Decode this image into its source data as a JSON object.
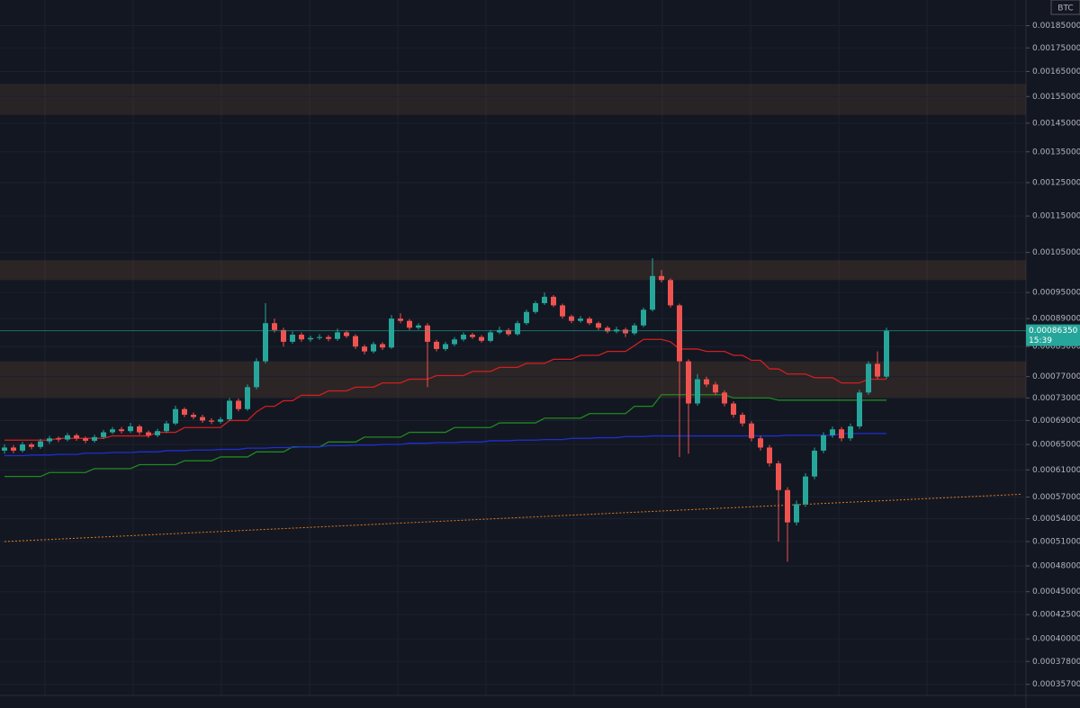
{
  "chart_data": {
    "type": "candlestick",
    "currency": "BTC",
    "log_scale": true,
    "grid": true,
    "up_color": "#26a69a",
    "down_color": "#ef5350",
    "ylim": [
      0.000352,
      0.00192
    ],
    "yticks": [
      {
        "value": 0.00185,
        "label": "0.00185000"
      },
      {
        "value": 0.00175,
        "label": "0.00175000"
      },
      {
        "value": 0.00165,
        "label": "0.00165000"
      },
      {
        "value": 0.00155,
        "label": "0.00155000"
      },
      {
        "value": 0.00145,
        "label": "0.00145000"
      },
      {
        "value": 0.00135,
        "label": "0.00135000"
      },
      {
        "value": 0.00125,
        "label": "0.00125000"
      },
      {
        "value": 0.00115,
        "label": "0.00115000"
      },
      {
        "value": 0.00105,
        "label": "0.00105000"
      },
      {
        "value": 0.00095,
        "label": "0.00095000"
      },
      {
        "value": 0.00089,
        "label": "0.00089000"
      },
      {
        "value": 0.00083,
        "label": "0.00083000"
      },
      {
        "value": 0.00077,
        "label": "0.00077000"
      },
      {
        "value": 0.00073,
        "label": "0.00073000"
      },
      {
        "value": 0.00069,
        "label": "0.00069000"
      },
      {
        "value": 0.00065,
        "label": "0.00065000"
      },
      {
        "value": 0.00061,
        "label": "0.00061000"
      },
      {
        "value": 0.00057,
        "label": "0.00057000"
      },
      {
        "value": 0.00054,
        "label": "0.00054000"
      },
      {
        "value": 0.00051,
        "label": "0.00051000"
      },
      {
        "value": 0.00048,
        "label": "0.00048000"
      },
      {
        "value": 0.00045,
        "label": "0.00045000"
      },
      {
        "value": 0.000425,
        "label": "0.00042500"
      },
      {
        "value": 0.0004,
        "label": "0.00040000"
      },
      {
        "value": 0.000378,
        "label": "0.00037800"
      },
      {
        "value": 0.000357,
        "label": "0.00035700"
      }
    ],
    "last_price": {
      "value": 0.0008635,
      "label": "0.00086350"
    },
    "countdown": "15:39",
    "zones": [
      {
        "range": [
          0.00148,
          0.0016
        ],
        "color": "rgba(120,80,50,0.22)"
      },
      {
        "range": [
          0.00098,
          0.00103
        ],
        "color": "rgba(120,80,50,0.25)"
      },
      {
        "range": [
          0.00073,
          0.0008
        ],
        "color": "rgba(120,80,50,0.25)"
      }
    ],
    "candles": [
      [
        0.00064,
        0.00065,
        0.000635,
        0.000645
      ],
      [
        0.000645,
        0.000649,
        0.000636,
        0.00064
      ],
      [
        0.00064,
        0.000654,
        0.000637,
        0.00065
      ],
      [
        0.00065,
        0.000653,
        0.000642,
        0.000646
      ],
      [
        0.000646,
        0.000659,
        0.000643,
        0.000655
      ],
      [
        0.000655,
        0.000664,
        0.000651,
        0.00066
      ],
      [
        0.00066,
        0.000663,
        0.000654,
        0.000658
      ],
      [
        0.000658,
        0.000669,
        0.000655,
        0.000665
      ],
      [
        0.000665,
        0.000668,
        0.000656,
        0.00066
      ],
      [
        0.00066,
        0.000663,
        0.000652,
        0.000656
      ],
      [
        0.000656,
        0.000666,
        0.000653,
        0.000662
      ],
      [
        0.000662,
        0.000674,
        0.000659,
        0.00067
      ],
      [
        0.00067,
        0.000679,
        0.000667,
        0.000675
      ],
      [
        0.000675,
        0.000679,
        0.000668,
        0.000672
      ],
      [
        0.000672,
        0.000686,
        0.000669,
        0.00068
      ],
      [
        0.00068,
        0.000683,
        0.000666,
        0.00067
      ],
      [
        0.00067,
        0.000673,
        0.000661,
        0.000665
      ],
      [
        0.000665,
        0.000676,
        0.000662,
        0.000672
      ],
      [
        0.000672,
        0.000689,
        0.000669,
        0.000685
      ],
      [
        0.000685,
        0.000716,
        0.000682,
        0.00071
      ],
      [
        0.00071,
        0.000713,
        0.000696,
        0.0007
      ],
      [
        0.0007,
        0.000704,
        0.000692,
        0.000696
      ],
      [
        0.000696,
        0.0007,
        0.000686,
        0.00069
      ],
      [
        0.00069,
        0.000694,
        0.000684,
        0.000688
      ],
      [
        0.000688,
        0.000696,
        0.000685,
        0.000692
      ],
      [
        0.000692,
        0.00073,
        0.000689,
        0.000725
      ],
      [
        0.000725,
        0.000729,
        0.000706,
        0.00071
      ],
      [
        0.00071,
        0.000755,
        0.000707,
        0.00075
      ],
      [
        0.00075,
        0.000806,
        0.000746,
        0.0008
      ],
      [
        0.0008,
        0.000925,
        0.000796,
        0.00088
      ],
      [
        0.00088,
        0.00089,
        0.00086,
        0.000865
      ],
      [
        0.000865,
        0.00087,
        0.00083,
        0.00084
      ],
      [
        0.00084,
        0.000862,
        0.000836,
        0.000855
      ],
      [
        0.000855,
        0.00086,
        0.00084,
        0.000845
      ],
      [
        0.000845,
        0.000853,
        0.00084,
        0.000848
      ],
      [
        0.000848,
        0.000856,
        0.000844,
        0.00085
      ],
      [
        0.00085,
        0.000854,
        0.000841,
        0.000846
      ],
      [
        0.000846,
        0.000868,
        0.000842,
        0.00086
      ],
      [
        0.00086,
        0.000864,
        0.000848,
        0.000852
      ],
      [
        0.000852,
        0.000856,
        0.000825,
        0.00083
      ],
      [
        0.00083,
        0.000834,
        0.000814,
        0.00082
      ],
      [
        0.00082,
        0.00084,
        0.000816,
        0.000835
      ],
      [
        0.000835,
        0.000839,
        0.000823,
        0.000828
      ],
      [
        0.000828,
        0.000898,
        0.000825,
        0.00089
      ],
      [
        0.00089,
        0.000902,
        0.00088,
        0.000885
      ],
      [
        0.000885,
        0.000889,
        0.000865,
        0.00087
      ],
      [
        0.00087,
        0.00088,
        0.000866,
        0.000875
      ],
      [
        0.000875,
        0.00088,
        0.00075,
        0.00084
      ],
      [
        0.00084,
        0.000844,
        0.00082,
        0.000825
      ],
      [
        0.000825,
        0.00084,
        0.000821,
        0.000835
      ],
      [
        0.000835,
        0.00085,
        0.000831,
        0.000845
      ],
      [
        0.000845,
        0.00086,
        0.000841,
        0.000855
      ],
      [
        0.000855,
        0.000859,
        0.000846,
        0.00085
      ],
      [
        0.00085,
        0.000854,
        0.000838,
        0.000842
      ],
      [
        0.000842,
        0.000865,
        0.000839,
        0.00086
      ],
      [
        0.00086,
        0.000872,
        0.000856,
        0.000865
      ],
      [
        0.000865,
        0.000869,
        0.000852,
        0.000856
      ],
      [
        0.000856,
        0.000885,
        0.000853,
        0.00088
      ],
      [
        0.00088,
        0.00091,
        0.000876,
        0.000905
      ],
      [
        0.000905,
        0.00093,
        0.000901,
        0.000925
      ],
      [
        0.000925,
        0.00095,
        0.000921,
        0.00094
      ],
      [
        0.00094,
        0.000944,
        0.000916,
        0.00092
      ],
      [
        0.00092,
        0.000924,
        0.00089,
        0.000895
      ],
      [
        0.000895,
        0.000899,
        0.00088,
        0.000885
      ],
      [
        0.000885,
        0.000896,
        0.000881,
        0.00089
      ],
      [
        0.00089,
        0.000894,
        0.000876,
        0.00088
      ],
      [
        0.00088,
        0.000884,
        0.000865,
        0.00087
      ],
      [
        0.00087,
        0.000874,
        0.000858,
        0.000862
      ],
      [
        0.000862,
        0.000872,
        0.000858,
        0.000866
      ],
      [
        0.000866,
        0.00087,
        0.00085,
        0.000858
      ],
      [
        0.000858,
        0.00088,
        0.000854,
        0.000875
      ],
      [
        0.000875,
        0.000915,
        0.000871,
        0.00091
      ],
      [
        0.00091,
        0.001035,
        0.000906,
        0.00099
      ],
      [
        0.00099,
        0.001005,
        0.000974,
        0.00098
      ],
      [
        0.00098,
        0.000984,
        0.000915,
        0.00092
      ],
      [
        0.00092,
        0.000924,
        0.00063,
        0.0008
      ],
      [
        0.0008,
        0.000804,
        0.000635,
        0.00072
      ],
      [
        0.00072,
        0.000775,
        0.000716,
        0.000765
      ],
      [
        0.000765,
        0.00077,
        0.00075,
        0.000755
      ],
      [
        0.000755,
        0.00076,
        0.000735,
        0.00074
      ],
      [
        0.00074,
        0.000744,
        0.000715,
        0.00072
      ],
      [
        0.00072,
        0.000724,
        0.000695,
        0.0007
      ],
      [
        0.0007,
        0.000704,
        0.00068,
        0.000685
      ],
      [
        0.000685,
        0.000689,
        0.000655,
        0.00066
      ],
      [
        0.00066,
        0.000664,
        0.00064,
        0.000645
      ],
      [
        0.000645,
        0.000649,
        0.000615,
        0.00062
      ],
      [
        0.00062,
        0.000624,
        0.00051,
        0.00058
      ],
      [
        0.00058,
        0.000584,
        0.000485,
        0.000535
      ],
      [
        0.000535,
        0.000565,
        0.000531,
        0.00056
      ],
      [
        0.00056,
        0.000605,
        0.000556,
        0.0006
      ],
      [
        0.0006,
        0.000645,
        0.000596,
        0.00064
      ],
      [
        0.00064,
        0.00067,
        0.000636,
        0.000665
      ],
      [
        0.000665,
        0.00068,
        0.000661,
        0.000675
      ],
      [
        0.000675,
        0.000679,
        0.000655,
        0.00066
      ],
      [
        0.00066,
        0.000685,
        0.000656,
        0.00068
      ],
      [
        0.00068,
        0.000745,
        0.000676,
        0.00074
      ],
      [
        0.00074,
        0.0008,
        0.000736,
        0.000795
      ],
      [
        0.000795,
        0.00082,
        0.000765,
        0.00077
      ],
      [
        0.00077,
        0.00087,
        0.000766,
        0.0008635
      ]
    ],
    "overlays": [
      {
        "color": "#d11f1f",
        "dash": false,
        "values": [
          0.000657,
          0.000657,
          0.000657,
          0.000657,
          0.000657,
          0.000657,
          0.00066,
          0.00066,
          0.00066,
          0.00066,
          0.00066,
          0.00066,
          0.000664,
          0.000664,
          0.000664,
          0.000664,
          0.000664,
          0.00067,
          0.00067,
          0.00067,
          0.000678,
          0.000678,
          0.000678,
          0.000678,
          0.000678,
          0.00069,
          0.00069,
          0.00069,
          0.000705,
          0.000715,
          0.000715,
          0.000725,
          0.000725,
          0.000735,
          0.000735,
          0.000735,
          0.000743,
          0.000743,
          0.000743,
          0.00075,
          0.00075,
          0.00075,
          0.000758,
          0.000758,
          0.000758,
          0.000765,
          0.000765,
          0.000765,
          0.000772,
          0.000772,
          0.000772,
          0.000772,
          0.00078,
          0.00078,
          0.00078,
          0.000788,
          0.000788,
          0.000788,
          0.000796,
          0.000796,
          0.000796,
          0.000804,
          0.000804,
          0.000804,
          0.000812,
          0.000812,
          0.000812,
          0.00082,
          0.00082,
          0.00082,
          0.000832,
          0.000845,
          0.000845,
          0.000845,
          0.00084,
          0.000825,
          0.000825,
          0.000825,
          0.00082,
          0.00082,
          0.00082,
          0.000812,
          0.000812,
          0.000802,
          0.000802,
          0.000785,
          0.000785,
          0.000775,
          0.000775,
          0.000775,
          0.000768,
          0.000768,
          0.000768,
          0.000758,
          0.000758,
          0.000758,
          0.000765,
          0.000765,
          0.000765
        ]
      },
      {
        "color": "#1f8a1f",
        "dash": false,
        "values": [
          0.0006,
          0.0006,
          0.0006,
          0.0006,
          0.0006,
          0.000606,
          0.000606,
          0.000606,
          0.000606,
          0.000606,
          0.000612,
          0.000612,
          0.000612,
          0.000612,
          0.000612,
          0.000618,
          0.000618,
          0.000618,
          0.000618,
          0.000618,
          0.000624,
          0.000624,
          0.000624,
          0.000624,
          0.00063,
          0.00063,
          0.00063,
          0.00063,
          0.000638,
          0.000638,
          0.000638,
          0.000638,
          0.000646,
          0.000646,
          0.000646,
          0.000646,
          0.000654,
          0.000654,
          0.000654,
          0.000654,
          0.000662,
          0.000662,
          0.000662,
          0.000662,
          0.000662,
          0.00067,
          0.00067,
          0.00067,
          0.00067,
          0.00067,
          0.000678,
          0.000678,
          0.000678,
          0.000678,
          0.000678,
          0.000686,
          0.000686,
          0.000686,
          0.000686,
          0.000686,
          0.000694,
          0.000694,
          0.000694,
          0.000694,
          0.000694,
          0.000702,
          0.000702,
          0.000702,
          0.000702,
          0.000702,
          0.000715,
          0.000715,
          0.000715,
          0.000736,
          0.000736,
          0.000736,
          0.000736,
          0.000736,
          0.000736,
          0.000736,
          0.000736,
          0.00073,
          0.00073,
          0.00073,
          0.00073,
          0.00073,
          0.000726,
          0.000726,
          0.000726,
          0.000726,
          0.000726,
          0.000726,
          0.000726,
          0.000726,
          0.000726,
          0.000726,
          0.000726,
          0.000726,
          0.000726
        ]
      },
      {
        "color": "#1f2fcf",
        "dash": false,
        "values": [
          0.000632,
          0.000632,
          0.000632,
          0.000633,
          0.000633,
          0.000633,
          0.000634,
          0.000634,
          0.000634,
          0.000636,
          0.000636,
          0.000636,
          0.000637,
          0.000637,
          0.000637,
          0.000638,
          0.000638,
          0.000638,
          0.00064,
          0.00064,
          0.00064,
          0.000641,
          0.000641,
          0.000641,
          0.000642,
          0.000642,
          0.000642,
          0.000644,
          0.000644,
          0.000644,
          0.000645,
          0.000645,
          0.000645,
          0.000646,
          0.000646,
          0.000646,
          0.000648,
          0.000648,
          0.000648,
          0.000649,
          0.000649,
          0.000649,
          0.00065,
          0.00065,
          0.00065,
          0.000652,
          0.000652,
          0.000652,
          0.000653,
          0.000653,
          0.000653,
          0.000654,
          0.000654,
          0.000654,
          0.000656,
          0.000656,
          0.000656,
          0.000657,
          0.000657,
          0.000657,
          0.000658,
          0.000658,
          0.000658,
          0.00066,
          0.00066,
          0.00066,
          0.000661,
          0.000661,
          0.000661,
          0.000663,
          0.000663,
          0.000663,
          0.000664,
          0.000664,
          0.000664,
          0.000664,
          0.000664,
          0.000664,
          0.000664,
          0.000664,
          0.000664,
          0.000664,
          0.000664,
          0.000664,
          0.000664,
          0.000664,
          0.000664,
          0.000665,
          0.000665,
          0.000665,
          0.000665,
          0.000665,
          0.000665,
          0.000668,
          0.000668,
          0.000668,
          0.000668,
          0.000668,
          0.000668
        ]
      },
      {
        "color": "#e07a1f",
        "dash": true,
        "x": [
          0,
          113
        ],
        "values": [
          0.00051,
          0.000574
        ]
      }
    ]
  }
}
